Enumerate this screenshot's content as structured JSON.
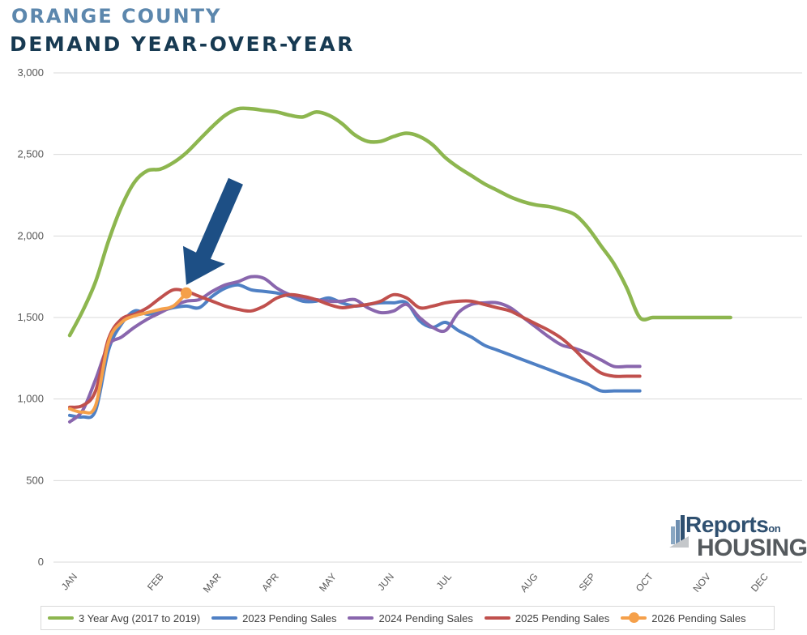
{
  "header": {
    "title_line1": "ORANGE COUNTY",
    "title_line2": "DEMAND YEAR-OVER-YEAR"
  },
  "colors": {
    "title_line1": "#5c87ad",
    "title_line2": "#173a52",
    "arrow": "#1d4f85",
    "gridline": "#d9d9d9",
    "axis_text": "#595959"
  },
  "logo": {
    "word1": "Reports",
    "word1_small": "on",
    "word2": "HOUSING"
  },
  "chart_data": {
    "type": "line",
    "title": "",
    "xlabel": "",
    "ylabel": "",
    "ylim": [
      0,
      3000
    ],
    "yticks": [
      0,
      500,
      1000,
      1500,
      2000,
      2500,
      3000
    ],
    "ytick_labels": [
      "0",
      "500",
      "1,000",
      "1,500",
      "2,000",
      "2,500",
      "3,000"
    ],
    "month_labels": [
      "JAN",
      "FEB",
      "MAR",
      "APR",
      "MAY",
      "JUN",
      "JUL",
      "AUG",
      "SEP",
      "OCT",
      "NOV",
      "DEC"
    ],
    "month_ticks": [
      1,
      7,
      11,
      15,
      19,
      23,
      27,
      33,
      37,
      41,
      45,
      49
    ],
    "x_range": [
      0,
      52
    ],
    "grid": true,
    "legend_position": "bottom",
    "annotation": "arrow pointing at latest 2026 Pending Sales point",
    "series": [
      {
        "name": "3 Year Avg (2017 to 2019)",
        "color": "#8db64f",
        "x": [
          0,
          1,
          2,
          3,
          4,
          5,
          6,
          7,
          8,
          9,
          10,
          11,
          12,
          13,
          14,
          15,
          16,
          17,
          18,
          19,
          20,
          21,
          22,
          23,
          24,
          25,
          26,
          27,
          28,
          29,
          30,
          31,
          32,
          33,
          34,
          35,
          36,
          37,
          38,
          39,
          40,
          41,
          42,
          43,
          44,
          45,
          46,
          47,
          48,
          49,
          50,
          51
        ],
        "y": [
          1390,
          1540,
          1720,
          1970,
          2180,
          2330,
          2400,
          2410,
          2450,
          2510,
          2590,
          2670,
          2740,
          2780,
          2780,
          2770,
          2760,
          2740,
          2730,
          2760,
          2740,
          2690,
          2620,
          2580,
          2580,
          2610,
          2630,
          2610,
          2560,
          2480,
          2420,
          2370,
          2320,
          2280,
          2240,
          2210,
          2190,
          2180,
          2160,
          2130,
          2050,
          1940,
          1830,
          1680,
          1500,
          1500,
          1500,
          1500,
          1500,
          1500,
          1500,
          1500
        ],
        "y_note": "values read at weekly positions"
      },
      {
        "name": "2023 Pending Sales",
        "color": "#4f80c4",
        "x": [
          0,
          1,
          2,
          3,
          4,
          5,
          6,
          7,
          8,
          9,
          10,
          11,
          12,
          13,
          14,
          15,
          16,
          17,
          18,
          19,
          20,
          21,
          22,
          23,
          24,
          25,
          26,
          27,
          28,
          29,
          30,
          31,
          32,
          33,
          34,
          35,
          36,
          37,
          38,
          39,
          40,
          41,
          42,
          43,
          44
        ],
        "y": [
          900,
          890,
          930,
          1300,
          1460,
          1540,
          1520,
          1540,
          1560,
          1570,
          1560,
          1630,
          1680,
          1700,
          1670,
          1660,
          1650,
          1630,
          1600,
          1600,
          1620,
          1590,
          1570,
          1580,
          1590,
          1590,
          1590,
          1480,
          1440,
          1470,
          1420,
          1380,
          1330,
          1300,
          1270,
          1240,
          1210,
          1180,
          1150,
          1120,
          1090,
          1050,
          1050,
          1050,
          1050
        ]
      },
      {
        "name": "2024 Pending Sales",
        "color": "#8966ad",
        "x": [
          0,
          1,
          2,
          3,
          4,
          5,
          6,
          7,
          8,
          9,
          10,
          11,
          12,
          13,
          14,
          15,
          16,
          17,
          18,
          19,
          20,
          21,
          22,
          23,
          24,
          25,
          26,
          27,
          28,
          29,
          30,
          31,
          32,
          33,
          34,
          35,
          36,
          37,
          38,
          39,
          40,
          41,
          42,
          43,
          44
        ],
        "y": [
          860,
          930,
          1120,
          1330,
          1380,
          1440,
          1490,
          1530,
          1570,
          1600,
          1610,
          1660,
          1700,
          1720,
          1750,
          1740,
          1680,
          1640,
          1620,
          1610,
          1600,
          1600,
          1610,
          1560,
          1530,
          1540,
          1580,
          1500,
          1440,
          1420,
          1530,
          1580,
          1590,
          1590,
          1560,
          1500,
          1440,
          1380,
          1330,
          1310,
          1280,
          1240,
          1200,
          1200,
          1200
        ]
      },
      {
        "name": "2025 Pending Sales",
        "color": "#c0504d",
        "x": [
          0,
          1,
          2,
          3,
          4,
          5,
          6,
          7,
          8,
          9,
          10,
          11,
          12,
          13,
          14,
          15,
          16,
          17,
          18,
          19,
          20,
          21,
          22,
          23,
          24,
          25,
          26,
          27,
          28,
          29,
          30,
          31,
          32,
          33,
          34,
          35,
          36,
          37,
          38,
          39,
          40,
          41,
          42,
          43,
          44
        ],
        "y": [
          950,
          960,
          1050,
          1370,
          1490,
          1520,
          1560,
          1620,
          1670,
          1660,
          1630,
          1600,
          1570,
          1550,
          1540,
          1570,
          1620,
          1640,
          1630,
          1610,
          1580,
          1560,
          1570,
          1580,
          1600,
          1640,
          1620,
          1560,
          1570,
          1590,
          1600,
          1600,
          1580,
          1560,
          1540,
          1500,
          1460,
          1420,
          1370,
          1300,
          1220,
          1160,
          1140,
          1140,
          1140
        ]
      },
      {
        "name": "2026 Pending Sales",
        "color": "#f5a04a",
        "x": [
          0,
          1,
          2,
          3,
          4,
          5,
          6,
          7,
          8,
          9
        ],
        "y": [
          940,
          920,
          960,
          1350,
          1470,
          1510,
          1530,
          1550,
          1570,
          1650
        ],
        "marker_last": true
      }
    ]
  }
}
